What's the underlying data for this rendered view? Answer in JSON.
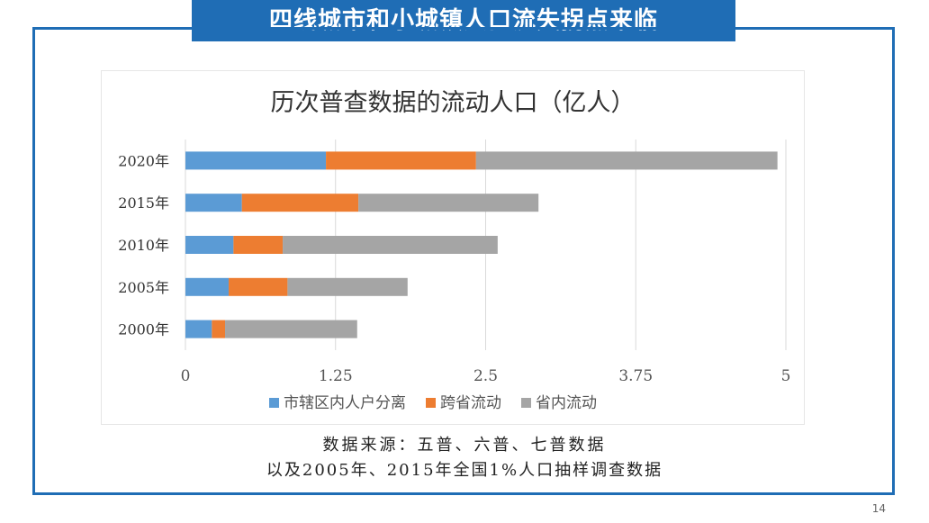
{
  "slide": {
    "title": "四线城市和小城镇人口流失拐点来临",
    "source_line1": "数据来源：五普、六普、七普数据",
    "source_line2": "以及2005年、2015年全国1%人口抽样调查数据",
    "page_number": "14"
  },
  "colors": {
    "banner": "#1f6db5",
    "series": [
      "#5b9bd5",
      "#ed7d31",
      "#a5a5a5"
    ]
  },
  "chart_data": {
    "type": "bar",
    "orientation": "horizontal",
    "stacked": true,
    "title": "历次普查数据的流动人口（亿人）",
    "categories": [
      "2020年",
      "2015年",
      "2010年",
      "2005年",
      "2000年"
    ],
    "series": [
      {
        "name": "市辖区内人户分离",
        "values": [
          1.17,
          0.47,
          0.4,
          0.36,
          0.22
        ]
      },
      {
        "name": "跨省流动",
        "values": [
          1.25,
          0.97,
          0.41,
          0.49,
          0.11
        ]
      },
      {
        "name": "省内流动",
        "values": [
          2.51,
          1.5,
          1.79,
          1.0,
          1.1
        ]
      }
    ],
    "x_ticks": [
      "0",
      "1.25",
      "2.5",
      "3.75",
      "5"
    ],
    "xlim": [
      0,
      5
    ],
    "grid": true,
    "legend": "bottom"
  }
}
